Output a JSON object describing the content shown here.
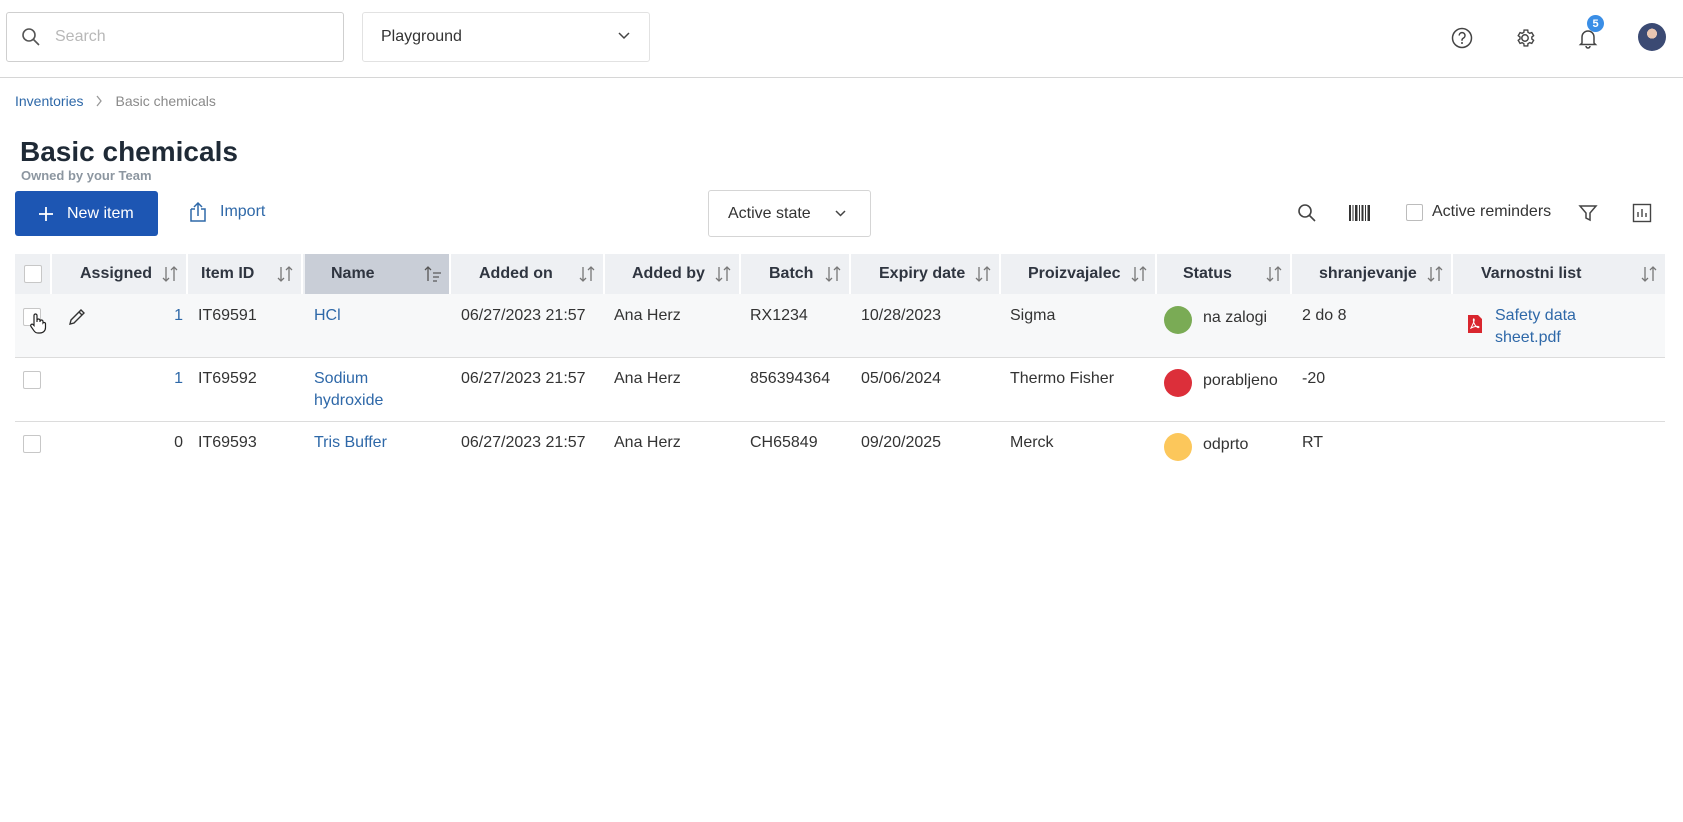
{
  "header": {
    "search_placeholder": "Search",
    "project_name": "Playground",
    "notification_count": "5"
  },
  "breadcrumb": {
    "parent": "Inventories",
    "current": "Basic chemicals"
  },
  "page": {
    "title": "Basic chemicals",
    "subtitle": "Owned by your Team"
  },
  "toolbar": {
    "new_item_label": "New item",
    "import_label": "Import",
    "state_filter": "Active state",
    "reminders_label": "Active reminders"
  },
  "table": {
    "columns": [
      "Assigned",
      "Item ID",
      "Name",
      "Added on",
      "Added by",
      "Batch",
      "Expiry date",
      "Proizvajalec",
      "Status",
      "shranjevanje",
      "Varnostni list"
    ],
    "rows": [
      {
        "assigned": "1",
        "item_id": "IT69591",
        "name_line1": "HCl",
        "name_line2": "",
        "added_on": "06/27/2023 21:57",
        "added_by": "Ana Herz",
        "batch": "RX1234",
        "expiry": "10/28/2023",
        "manufacturer": "Sigma",
        "status": "na zalogi",
        "status_color": "#7aab55",
        "storage": "2 do 8",
        "sds_line1": "Safety data",
        "sds_line2": "sheet.pdf"
      },
      {
        "assigned": "1",
        "item_id": "IT69592",
        "name_line1": "Sodium",
        "name_line2": "hydroxide",
        "added_on": "06/27/2023 21:57",
        "added_by": "Ana Herz",
        "batch": "856394364",
        "expiry": "05/06/2024",
        "manufacturer": "Thermo Fisher",
        "status": "porabljeno",
        "status_color": "#dc2f3a",
        "storage": "-20",
        "sds_line1": "",
        "sds_line2": ""
      },
      {
        "assigned": "0",
        "item_id": "IT69593",
        "name_line1": "Tris Buffer",
        "name_line2": "",
        "added_on": "06/27/2023 21:57",
        "added_by": "Ana Herz",
        "batch": "CH65849",
        "expiry": "09/20/2025",
        "manufacturer": "Merck",
        "status": "odprto",
        "status_color": "#fcc75b",
        "storage": "RT",
        "sds_line1": "",
        "sds_line2": ""
      }
    ]
  },
  "icons": {
    "search": "search-icon",
    "chevron": "chevron-down-icon",
    "help": "help-icon",
    "settings": "gear-icon",
    "notifications": "bell-icon",
    "edit": "pencil-icon",
    "pdf": "pdf-icon",
    "barcode": "barcode-icon",
    "filter": "filter-icon",
    "columns": "chart-icon"
  }
}
